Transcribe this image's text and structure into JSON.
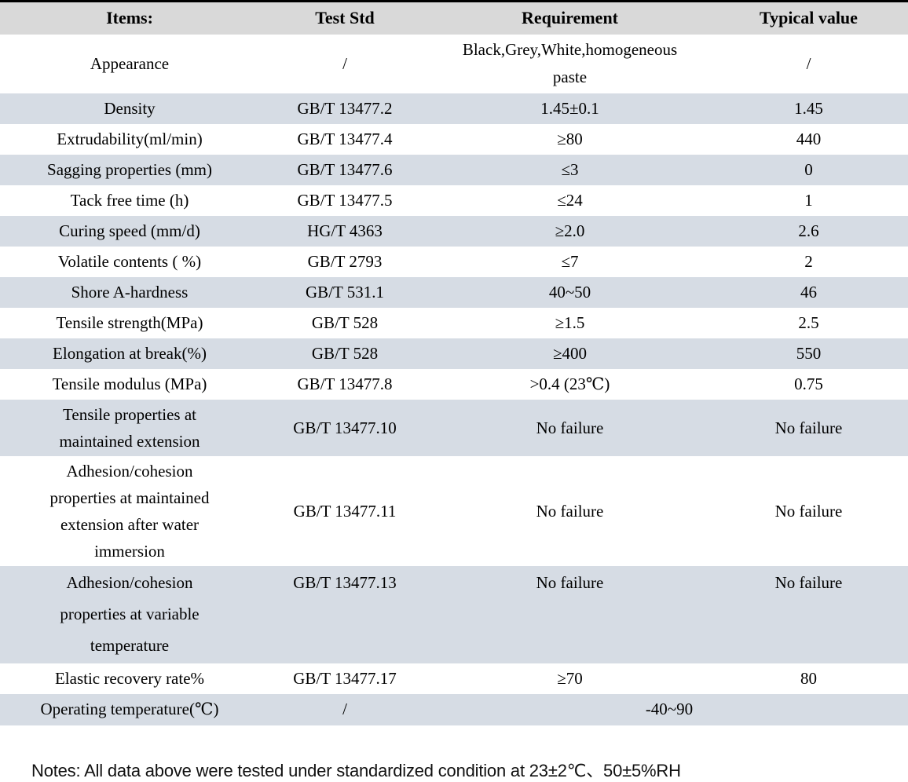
{
  "colors": {
    "header_bg": "#d9d9d9",
    "alt_row_bg": "#d6dce4",
    "top_border": "#000000"
  },
  "table": {
    "headers": [
      "Items:",
      "Test Std",
      "Requirement",
      "Typical value"
    ],
    "rows": [
      {
        "item": "Appearance",
        "std": "/",
        "req": "Black,Grey,White,homogeneous paste",
        "typ": "/"
      },
      {
        "item": "Density",
        "std": "GB/T 13477.2",
        "req": "1.45±0.1",
        "typ": "1.45"
      },
      {
        "item": "Extrudability(ml/min)",
        "std": "GB/T 13477.4",
        "req": "≥80",
        "typ": "440"
      },
      {
        "item": "Sagging properties (mm)",
        "std": "GB/T 13477.6",
        "req": "≤3",
        "typ": "0"
      },
      {
        "item": "Tack free time (h)",
        "std": "GB/T 13477.5",
        "req": "≤24",
        "typ": "1"
      },
      {
        "item": "Curing speed (mm/d)",
        "std": "HG/T 4363",
        "req": "≥2.0",
        "typ": "2.6"
      },
      {
        "item": "Volatile contents ( %)",
        "std": "GB/T 2793",
        "req": "≤7",
        "typ": "2"
      },
      {
        "item": "Shore A-hardness",
        "std": "GB/T 531.1",
        "req": "40~50",
        "typ": "46"
      },
      {
        "item": "Tensile strength(MPa)",
        "std": "GB/T 528",
        "req": "≥1.5",
        "typ": "2.5"
      },
      {
        "item": "Elongation at break(%)",
        "std": "GB/T 528",
        "req": "≥400",
        "typ": "550"
      },
      {
        "item": "Tensile modulus (MPa)",
        "std": "GB/T 13477.8",
        "req": ">0.4 (23℃)",
        "typ": "0.75"
      },
      {
        "item": "Tensile properties at maintained extension",
        "std": "GB/T 13477.10",
        "req": "No failure",
        "typ": "No failure"
      },
      {
        "item": "Adhesion/cohesion properties at maintained extension after water immersion",
        "std": "GB/T 13477.11",
        "req": "No failure",
        "typ": "No failure"
      },
      {
        "item": "Adhesion/cohesion properties at variable temperature",
        "std": "GB/T 13477.13",
        "req": "No failure",
        "typ": "No failure"
      },
      {
        "item": "Elastic recovery rate%",
        "std": "GB/T 13477.17",
        "req": "≥70",
        "typ": "80"
      },
      {
        "item": "Operating temperature(℃)",
        "std": "/",
        "req": "-40~90"
      }
    ]
  },
  "notes": "Notes: All data above were tested under standardized condition at 23±2℃、50±5%RH"
}
